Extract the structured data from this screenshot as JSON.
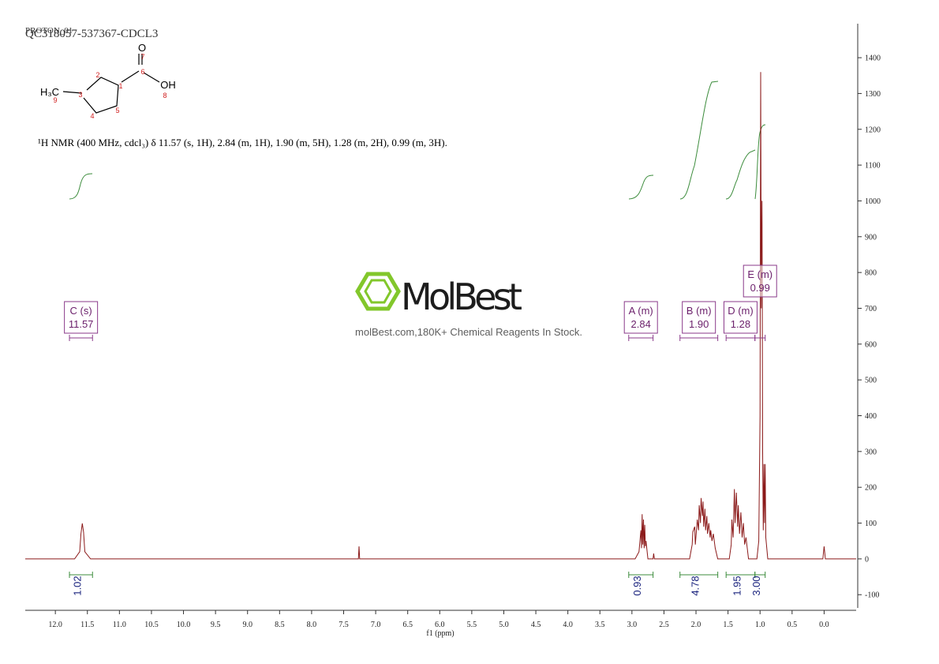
{
  "header": {
    "title": "PROTON_01",
    "sample": "QC318057-537367-CDCL3"
  },
  "structure": {
    "atoms": [
      "O",
      "7",
      "6",
      "OH",
      "8",
      "2",
      "1",
      "H₃C",
      "9",
      "3",
      "4",
      "5"
    ]
  },
  "nmr_text": "¹H NMR (400 MHz, cdcl₃) δ 11.57 (s, 1H), 2.84 (m, 1H), 1.90 (m, 5H), 1.28 (m, 2H), 0.99 (m, 3H).",
  "watermark": {
    "brand": "MolBest",
    "tagline": "molBest.com,180K+ Chemical Reagents In Stock."
  },
  "chart_data": {
    "type": "line",
    "xlabel": "f1 (ppm)",
    "x": [
      12.47,
      11.7,
      11.62,
      11.6,
      11.58,
      11.56,
      11.54,
      11.45,
      7.27,
      7.26,
      7.25,
      2.95,
      2.89,
      2.87,
      2.86,
      2.85,
      2.84,
      2.83,
      2.82,
      2.81,
      2.8,
      2.79,
      2.78,
      2.75,
      2.67,
      2.66,
      2.65,
      2.1,
      2.06,
      2.05,
      2.02,
      2.01,
      1.98,
      1.96,
      1.95,
      1.93,
      1.92,
      1.9,
      1.89,
      1.88,
      1.86,
      1.85,
      1.83,
      1.82,
      1.8,
      1.78,
      1.77,
      1.75,
      1.73,
      1.7,
      1.66,
      1.48,
      1.45,
      1.44,
      1.42,
      1.4,
      1.39,
      1.37,
      1.35,
      1.34,
      1.32,
      1.3,
      1.28,
      1.26,
      1.24,
      1.22,
      1.18,
      1.05,
      1.02,
      1.0,
      0.99,
      0.98,
      0.97,
      0.96,
      0.95,
      0.94,
      0.93,
      0.92,
      0.91,
      0.88,
      0.02,
      0.0,
      -0.02,
      -0.5
    ],
    "series": [
      {
        "color": "#8b1a1a",
        "values": [
          0,
          0,
          20,
          70,
          99,
          75,
          20,
          0,
          0,
          35,
          0,
          0,
          20,
          60,
          80,
          30,
          125,
          40,
          110,
          30,
          95,
          35,
          50,
          0,
          0,
          15,
          0,
          0,
          40,
          75,
          90,
          40,
          110,
          80,
          150,
          100,
          170,
          120,
          160,
          90,
          140,
          80,
          120,
          70,
          100,
          60,
          80,
          50,
          70,
          30,
          0,
          0,
          40,
          110,
          60,
          195,
          100,
          185,
          90,
          150,
          70,
          130,
          60,
          100,
          40,
          60,
          0,
          0,
          50,
          400,
          1360,
          700,
          1000,
          300,
          80,
          265,
          100,
          265,
          60,
          0,
          0,
          35,
          0,
          0
        ]
      }
    ],
    "xlim": [
      12.47,
      -0.5
    ],
    "xticks": [
      {
        "value": 12,
        "label": "12.0"
      },
      11.5,
      {
        "value": 11,
        "label": "11.0"
      },
      10.5,
      {
        "value": 10,
        "label": "10.0"
      },
      9.5,
      {
        "value": 9,
        "label": "9.0"
      },
      8.5,
      {
        "value": 8,
        "label": "8.0"
      },
      7.5,
      {
        "value": 7,
        "label": "7.0"
      },
      6.5,
      {
        "value": 6,
        "label": "6.0"
      },
      5.5,
      {
        "value": 5,
        "label": "5.0"
      },
      4.5,
      {
        "value": 4,
        "label": "4.0"
      },
      3.5,
      {
        "value": 3,
        "label": "3.0"
      },
      2.5,
      {
        "value": 2,
        "label": "2.0"
      },
      1.5,
      {
        "value": 1,
        "label": "1.0"
      },
      0.5,
      {
        "value": 0,
        "label": "0.0"
      }
    ],
    "ylim": [
      -137,
      1495
    ],
    "yticks": [
      -100,
      0,
      100,
      200,
      300,
      400,
      500,
      600,
      700,
      800,
      900,
      1000,
      1100,
      1200,
      1300,
      1400
    ],
    "integrals": {
      "color": "#3c8c3c",
      "values": [
        1.02,
        0.93,
        4.78,
        1.95,
        3.0
      ],
      "value_labels": [
        "1.02",
        "0.93",
        "4.78",
        "1.95",
        "3.00"
      ],
      "ranges": [
        [
          11.78,
          11.42
        ],
        [
          3.05,
          2.67
        ],
        [
          2.25,
          1.66
        ],
        [
          1.53,
          1.08
        ],
        [
          1.08,
          0.92
        ]
      ]
    },
    "multiplets": [
      {
        "name": "C (s)",
        "shift": "11.57"
      },
      {
        "name": "A (m)",
        "shift": "2.84"
      },
      {
        "name": "B (m)",
        "shift": "1.90"
      },
      {
        "name": "D (m)",
        "shift": "1.28"
      },
      {
        "name": "E (m)",
        "shift": "0.99"
      }
    ]
  }
}
